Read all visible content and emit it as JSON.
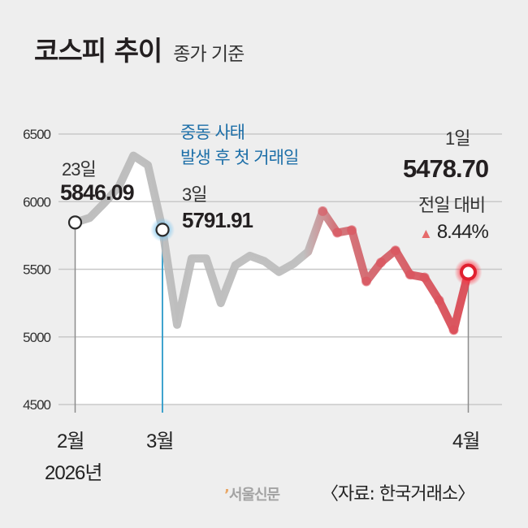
{
  "header": {
    "title": "코스피 추이",
    "subtitle": "종가 기준"
  },
  "annotations": {
    "start_date": "23일",
    "start_value": "5846.09",
    "event_line1": "중동 사태",
    "event_line2": "발생 후 첫 거래일",
    "event_date": "3일",
    "event_value": "5791.91",
    "end_date": "1일",
    "end_value": "5478.70",
    "change_label": "전일 대비",
    "change_icon": "triangle-up-icon",
    "change_symbol": "▲",
    "change_value": "8.44%"
  },
  "x_axis": {
    "labels": [
      "2월",
      "3월",
      "4월"
    ],
    "year_label": "2026년"
  },
  "footer": {
    "brand_mark": "’",
    "brand": "서울신문",
    "source": "〈자료: 한국거래소〉"
  },
  "colors": {
    "background": "#eeeeee",
    "plot_fill": "#ffffff",
    "line_gray": "#b9b9b9",
    "line_red": "#d9444f",
    "event_blue": "#2b9ac9",
    "event_text": "#1d6fa8",
    "gridline": "#c8c8c8",
    "axis": "#8c8c8c"
  },
  "chart_data": {
    "type": "line",
    "title": "코스피 추이",
    "subtitle": "종가 기준",
    "xlabel": "",
    "ylabel": "",
    "ylim": [
      4500,
      6500
    ],
    "yticks": [
      4500,
      5000,
      5500,
      6000,
      6500
    ],
    "grid": true,
    "x_tick_labels": [
      "2월 2026년",
      "3월",
      "4월"
    ],
    "series": [
      {
        "name": "코스피 종가",
        "values": [
          5846.09,
          5880,
          5990,
          6110,
          6340,
          6270,
          5791.91,
          5090,
          5580,
          5580,
          5250,
          5530,
          5600,
          5560,
          5480,
          5540,
          5630,
          5930,
          5770,
          5790,
          5410,
          5550,
          5640,
          5460,
          5440,
          5270,
          5050,
          5478.7
        ]
      }
    ],
    "annotations": [
      {
        "index": 0,
        "label": "23일",
        "value": 5846.09
      },
      {
        "index": 6,
        "label": "3일",
        "value": 5791.91,
        "note": "중동 사태 발생 후 첫 거래일"
      },
      {
        "index": 27,
        "label": "1일",
        "value": 5478.7,
        "change": "▲8.44%"
      }
    ],
    "source": "한국거래소"
  }
}
